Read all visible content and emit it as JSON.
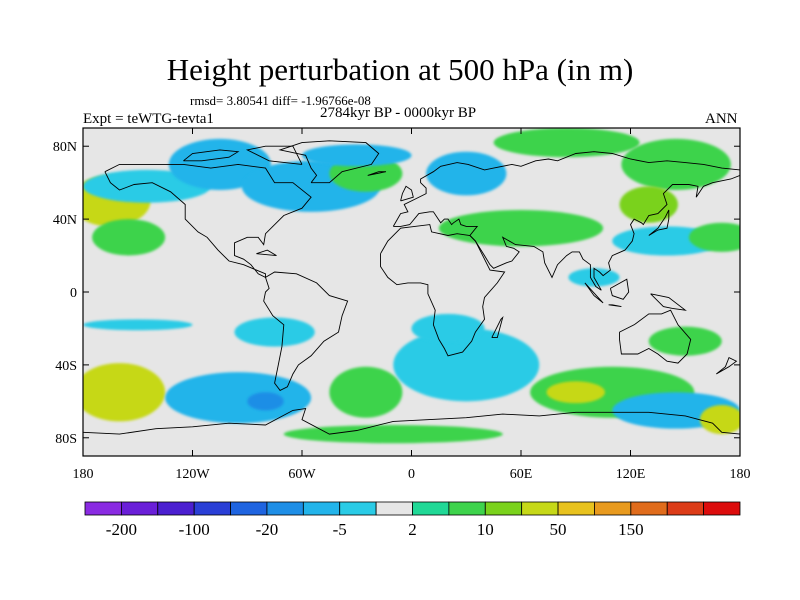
{
  "figure": {
    "title": "Height perturbation at 500 hPa (in m)",
    "stats": "rmsd= 3.80541 diff= -1.96766e-08",
    "period": "2784kyr BP - 0000kyr BP",
    "experiment": "Expt = teWTG-tevta1",
    "season": "ANN"
  },
  "map": {
    "projection": "cylindrical-equidistant",
    "lon_range": [
      -180,
      180
    ],
    "lat_range": [
      -90,
      90
    ],
    "background_color": "#e6e6e6",
    "lat_ticks": [
      {
        "value": 80,
        "label": "80N"
      },
      {
        "value": 40,
        "label": "40N"
      },
      {
        "value": 0,
        "label": "0"
      },
      {
        "value": -40,
        "label": "40S"
      },
      {
        "value": -80,
        "label": "80S"
      }
    ],
    "lon_ticks": [
      {
        "value": -180,
        "label": "180"
      },
      {
        "value": -120,
        "label": "120W"
      },
      {
        "value": -60,
        "label": "60W"
      },
      {
        "value": 0,
        "label": "0"
      },
      {
        "value": 60,
        "label": "60E"
      },
      {
        "value": 120,
        "label": "120E"
      },
      {
        "value": 180,
        "label": "180"
      }
    ]
  },
  "colorbar": {
    "colors": [
      "#8a2be2",
      "#6a1fd8",
      "#4b1fd0",
      "#2a3fd6",
      "#1f64e0",
      "#1e8ee6",
      "#23b4ea",
      "#2acbe6",
      "#e6e6e6",
      "#20d896",
      "#3ed34c",
      "#7ad21c",
      "#c6d818",
      "#e8c21e",
      "#e89a1e",
      "#e06c1c",
      "#dc3c18",
      "#dc0c0c"
    ],
    "labels": [
      {
        "after_box": 1,
        "text": "-200"
      },
      {
        "after_box": 3,
        "text": "-100"
      },
      {
        "after_box": 5,
        "text": "-20"
      },
      {
        "after_box": 7,
        "text": "-5"
      },
      {
        "after_box": 9,
        "text": "2"
      },
      {
        "after_box": 11,
        "text": "10"
      },
      {
        "after_box": 13,
        "text": "50"
      },
      {
        "after_box": 15,
        "text": "150"
      }
    ]
  },
  "field_blobs": [
    {
      "lon": -165,
      "lat": 50,
      "rx": 22,
      "ry": 14,
      "level": 12
    },
    {
      "lon": -155,
      "lat": 30,
      "rx": 20,
      "ry": 10,
      "level": 10
    },
    {
      "lon": -145,
      "lat": 58,
      "rx": 35,
      "ry": 9,
      "level": 7
    },
    {
      "lon": -105,
      "lat": 70,
      "rx": 28,
      "ry": 14,
      "level": 6
    },
    {
      "lon": -55,
      "lat": 58,
      "rx": 38,
      "ry": 14,
      "level": 6
    },
    {
      "lon": -25,
      "lat": 65,
      "rx": 20,
      "ry": 10,
      "level": 10
    },
    {
      "lon": -30,
      "lat": 75,
      "rx": 30,
      "ry": 6,
      "level": 6
    },
    {
      "lon": 30,
      "lat": 65,
      "rx": 22,
      "ry": 12,
      "level": 6
    },
    {
      "lon": 60,
      "lat": 35,
      "rx": 45,
      "ry": 10,
      "level": 10
    },
    {
      "lon": 85,
      "lat": 82,
      "rx": 40,
      "ry": 8,
      "level": 10
    },
    {
      "lon": 145,
      "lat": 70,
      "rx": 30,
      "ry": 14,
      "level": 10
    },
    {
      "lon": 130,
      "lat": 48,
      "rx": 16,
      "ry": 10,
      "level": 11
    },
    {
      "lon": 140,
      "lat": 28,
      "rx": 30,
      "ry": 8,
      "level": 7
    },
    {
      "lon": 170,
      "lat": 30,
      "rx": 18,
      "ry": 8,
      "level": 10
    },
    {
      "lon": 100,
      "lat": 8,
      "rx": 14,
      "ry": 5,
      "level": 7
    },
    {
      "lon": -75,
      "lat": -22,
      "rx": 22,
      "ry": 8,
      "level": 7
    },
    {
      "lon": -150,
      "lat": -18,
      "rx": 30,
      "ry": 3,
      "level": 7
    },
    {
      "lon": -160,
      "lat": -55,
      "rx": 25,
      "ry": 16,
      "level": 12
    },
    {
      "lon": -95,
      "lat": -58,
      "rx": 40,
      "ry": 14,
      "level": 6
    },
    {
      "lon": -80,
      "lat": -60,
      "rx": 10,
      "ry": 5,
      "level": 5
    },
    {
      "lon": -25,
      "lat": -55,
      "rx": 20,
      "ry": 14,
      "level": 10
    },
    {
      "lon": 30,
      "lat": -40,
      "rx": 40,
      "ry": 20,
      "level": 7
    },
    {
      "lon": 20,
      "lat": -20,
      "rx": 20,
      "ry": 8,
      "level": 7
    },
    {
      "lon": 110,
      "lat": -55,
      "rx": 45,
      "ry": 14,
      "level": 10
    },
    {
      "lon": 90,
      "lat": -55,
      "rx": 16,
      "ry": 6,
      "level": 12
    },
    {
      "lon": 145,
      "lat": -65,
      "rx": 35,
      "ry": 10,
      "level": 6
    },
    {
      "lon": 150,
      "lat": -27,
      "rx": 20,
      "ry": 8,
      "level": 10
    },
    {
      "lon": 170,
      "lat": -70,
      "rx": 12,
      "ry": 8,
      "level": 12
    },
    {
      "lon": -10,
      "lat": -78,
      "rx": 60,
      "ry": 5,
      "level": 10
    }
  ],
  "coastlines": [
    [
      [
        -168,
        66
      ],
      [
        -160,
        70
      ],
      [
        -140,
        70
      ],
      [
        -125,
        70
      ],
      [
        -110,
        68
      ],
      [
        -95,
        70
      ],
      [
        -80,
        68
      ],
      [
        -75,
        60
      ],
      [
        -65,
        60
      ],
      [
        -55,
        52
      ],
      [
        -60,
        46
      ],
      [
        -70,
        42
      ],
      [
        -76,
        36
      ],
      [
        -80,
        32
      ],
      [
        -81,
        26
      ],
      [
        -84,
        30
      ],
      [
        -90,
        30
      ],
      [
        -97,
        27
      ],
      [
        -97,
        20
      ],
      [
        -92,
        18
      ],
      [
        -88,
        15
      ],
      [
        -84,
        10
      ],
      [
        -80,
        8
      ],
      [
        -80,
        10
      ],
      [
        -85,
        12
      ],
      [
        -92,
        15
      ],
      [
        -100,
        17
      ],
      [
        -106,
        23
      ],
      [
        -112,
        30
      ],
      [
        -117,
        33
      ],
      [
        -124,
        40
      ],
      [
        -124,
        48
      ],
      [
        -132,
        55
      ],
      [
        -142,
        60
      ],
      [
        -152,
        59
      ],
      [
        -160,
        56
      ],
      [
        -165,
        60
      ],
      [
        -168,
        66
      ]
    ],
    [
      [
        -80,
        8
      ],
      [
        -75,
        11
      ],
      [
        -63,
        10
      ],
      [
        -52,
        5
      ],
      [
        -45,
        -2
      ],
      [
        -35,
        -5
      ],
      [
        -38,
        -13
      ],
      [
        -40,
        -22
      ],
      [
        -48,
        -27
      ],
      [
        -55,
        -35
      ],
      [
        -62,
        -40
      ],
      [
        -65,
        -45
      ],
      [
        -68,
        -52
      ],
      [
        -72,
        -54
      ],
      [
        -75,
        -50
      ],
      [
        -73,
        -40
      ],
      [
        -71,
        -30
      ],
      [
        -70,
        -18
      ],
      [
        -76,
        -13
      ],
      [
        -81,
        -5
      ],
      [
        -80,
        0
      ],
      [
        -78,
        2
      ],
      [
        -80,
        8
      ]
    ],
    [
      [
        -55,
        60
      ],
      [
        -45,
        60
      ],
      [
        -38,
        66
      ],
      [
        -22,
        70
      ],
      [
        -18,
        76
      ],
      [
        -25,
        82
      ],
      [
        -45,
        83
      ],
      [
        -60,
        82
      ],
      [
        -72,
        78
      ],
      [
        -58,
        75
      ],
      [
        -55,
        68
      ],
      [
        -52,
        64
      ],
      [
        -55,
        60
      ]
    ],
    [
      [
        -10,
        36
      ],
      [
        -6,
        43
      ],
      [
        -2,
        44
      ],
      [
        -4,
        48
      ],
      [
        2,
        51
      ],
      [
        8,
        54
      ],
      [
        8,
        57
      ],
      [
        5,
        60
      ],
      [
        5,
        62
      ],
      [
        12,
        66
      ],
      [
        16,
        69
      ],
      [
        25,
        71
      ],
      [
        31,
        70
      ],
      [
        40,
        67
      ],
      [
        45,
        68
      ],
      [
        55,
        70
      ],
      [
        60,
        69
      ],
      [
        68,
        72
      ],
      [
        75,
        73
      ],
      [
        80,
        72
      ],
      [
        90,
        76
      ],
      [
        100,
        77
      ],
      [
        110,
        76
      ],
      [
        120,
        73
      ],
      [
        130,
        71
      ],
      [
        140,
        72
      ],
      [
        150,
        71
      ],
      [
        160,
        70
      ],
      [
        170,
        68
      ],
      [
        180,
        67
      ],
      [
        180,
        64
      ],
      [
        175,
        62
      ],
      [
        165,
        60
      ],
      [
        160,
        58
      ],
      [
        156,
        52
      ],
      [
        157,
        58
      ],
      [
        152,
        59
      ],
      [
        143,
        59
      ],
      [
        138,
        54
      ],
      [
        140,
        48
      ],
      [
        135,
        43
      ],
      [
        130,
        42
      ],
      [
        127,
        37
      ],
      [
        126,
        38
      ],
      [
        122,
        40
      ],
      [
        120,
        37
      ],
      [
        122,
        32
      ],
      [
        121,
        28
      ],
      [
        117,
        23
      ],
      [
        110,
        20
      ],
      [
        108,
        16
      ],
      [
        109,
        12
      ],
      [
        105,
        9
      ],
      [
        103,
        11
      ],
      [
        100,
        13
      ],
      [
        100,
        8
      ],
      [
        104,
        1
      ],
      [
        101,
        3
      ],
      [
        98,
        8
      ],
      [
        98,
        15
      ],
      [
        94,
        18
      ],
      [
        92,
        22
      ],
      [
        88,
        22
      ],
      [
        85,
        20
      ],
      [
        80,
        15
      ],
      [
        77,
        8
      ],
      [
        73,
        16
      ],
      [
        72,
        22
      ],
      [
        67,
        25
      ],
      [
        57,
        26
      ],
      [
        50,
        30
      ],
      [
        52,
        25
      ],
      [
        56,
        24
      ],
      [
        59,
        22
      ],
      [
        55,
        17
      ],
      [
        52,
        16
      ],
      [
        45,
        13
      ],
      [
        43,
        15
      ],
      [
        40,
        20
      ],
      [
        35,
        28
      ],
      [
        32,
        31
      ],
      [
        36,
        36
      ],
      [
        30,
        36
      ],
      [
        27,
        37
      ],
      [
        26,
        40
      ],
      [
        23,
        38
      ],
      [
        22,
        37
      ],
      [
        20,
        40
      ],
      [
        18,
        40
      ],
      [
        16,
        38
      ],
      [
        12,
        44
      ],
      [
        10,
        44
      ],
      [
        4,
        43
      ],
      [
        -1,
        37
      ],
      [
        -6,
        36
      ],
      [
        -10,
        36
      ]
    ],
    [
      [
        -17,
        21
      ],
      [
        -13,
        28
      ],
      [
        -6,
        35
      ],
      [
        10,
        37
      ],
      [
        11,
        33
      ],
      [
        20,
        31
      ],
      [
        25,
        32
      ],
      [
        32,
        31
      ],
      [
        35,
        28
      ],
      [
        43,
        12
      ],
      [
        51,
        11
      ],
      [
        47,
        5
      ],
      [
        40,
        -3
      ],
      [
        39,
        -8
      ],
      [
        40,
        -15
      ],
      [
        35,
        -22
      ],
      [
        33,
        -27
      ],
      [
        28,
        -33
      ],
      [
        20,
        -35
      ],
      [
        18,
        -31
      ],
      [
        15,
        -26
      ],
      [
        12,
        -18
      ],
      [
        13,
        -10
      ],
      [
        9,
        -1
      ],
      [
        9,
        4
      ],
      [
        5,
        5
      ],
      [
        -2,
        5
      ],
      [
        -8,
        4
      ],
      [
        -13,
        8
      ],
      [
        -17,
        14
      ],
      [
        -17,
        21
      ]
    ],
    [
      [
        114,
        -22
      ],
      [
        122,
        -18
      ],
      [
        130,
        -12
      ],
      [
        137,
        -12
      ],
      [
        142,
        -10
      ],
      [
        146,
        -18
      ],
      [
        153,
        -26
      ],
      [
        151,
        -34
      ],
      [
        146,
        -39
      ],
      [
        140,
        -38
      ],
      [
        135,
        -34
      ],
      [
        130,
        -31
      ],
      [
        124,
        -34
      ],
      [
        115,
        -34
      ],
      [
        114,
        -26
      ],
      [
        114,
        -22
      ]
    ],
    [
      [
        -180,
        -77
      ],
      [
        -160,
        -78
      ],
      [
        -140,
        -75
      ],
      [
        -120,
        -74
      ],
      [
        -100,
        -72
      ],
      [
        -80,
        -73
      ],
      [
        -65,
        -65
      ],
      [
        -58,
        -64
      ],
      [
        -60,
        -70
      ],
      [
        -45,
        -78
      ],
      [
        -30,
        -76
      ],
      [
        -10,
        -71
      ],
      [
        10,
        -70
      ],
      [
        30,
        -69
      ],
      [
        50,
        -67
      ],
      [
        70,
        -68
      ],
      [
        90,
        -66
      ],
      [
        110,
        -66
      ],
      [
        130,
        -66
      ],
      [
        150,
        -68
      ],
      [
        165,
        -72
      ],
      [
        170,
        -77
      ],
      [
        180,
        -78
      ]
    ],
    [
      [
        -6,
        50
      ],
      [
        -5,
        54
      ],
      [
        -3,
        58
      ],
      [
        0,
        56
      ],
      [
        1,
        52
      ],
      [
        -6,
        50
      ]
    ],
    [
      [
        130,
        31
      ],
      [
        135,
        34
      ],
      [
        140,
        35
      ],
      [
        141,
        40
      ],
      [
        141,
        45
      ],
      [
        139,
        41
      ],
      [
        135,
        35
      ],
      [
        130,
        31
      ]
    ],
    [
      [
        95,
        5
      ],
      [
        105,
        -6
      ],
      [
        100,
        -2
      ],
      [
        95,
        5
      ]
    ],
    [
      [
        110,
        -7
      ],
      [
        115,
        -8
      ],
      [
        108,
        -7
      ],
      [
        110,
        -7
      ]
    ],
    [
      [
        109,
        2
      ],
      [
        118,
        7
      ],
      [
        119,
        0
      ],
      [
        116,
        -4
      ],
      [
        110,
        -2
      ],
      [
        109,
        2
      ]
    ],
    [
      [
        131,
        -1
      ],
      [
        141,
        -3
      ],
      [
        150,
        -10
      ],
      [
        143,
        -9
      ],
      [
        138,
        -8
      ],
      [
        131,
        -1
      ]
    ],
    [
      [
        167,
        -45
      ],
      [
        174,
        -41
      ],
      [
        178,
        -38
      ],
      [
        174,
        -36
      ],
      [
        172,
        -41
      ],
      [
        167,
        -45
      ]
    ],
    [
      [
        44,
        -25
      ],
      [
        49,
        -15
      ],
      [
        50,
        -14
      ],
      [
        47,
        -25
      ],
      [
        44,
        -25
      ]
    ],
    [
      [
        -24,
        64
      ],
      [
        -14,
        66
      ],
      [
        -18,
        66
      ],
      [
        -24,
        64
      ]
    ],
    [
      [
        -85,
        21
      ],
      [
        -74,
        20
      ],
      [
        -79,
        23
      ],
      [
        -85,
        21
      ]
    ],
    [
      [
        -60,
        70
      ],
      [
        -78,
        72
      ],
      [
        -90,
        78
      ],
      [
        -80,
        80
      ],
      [
        -65,
        80
      ],
      [
        -60,
        70
      ]
    ],
    [
      [
        -125,
        72
      ],
      [
        -115,
        72
      ],
      [
        -100,
        74
      ],
      [
        -95,
        77
      ],
      [
        -105,
        78
      ],
      [
        -120,
        76
      ],
      [
        -125,
        72
      ]
    ]
  ]
}
